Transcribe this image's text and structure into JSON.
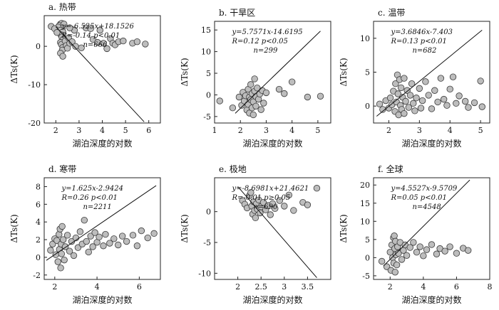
{
  "colors": {
    "marker_fill": "#bdbdbd",
    "marker_stroke": "#3a3a3a",
    "dense_fill": "#4a4a4a",
    "line": "#111111"
  },
  "chart_data": [
    {
      "type": "scatter",
      "title": "a. 热带",
      "xlabel": "湖泊深度的对数",
      "ylabel": "ΔTs(K)",
      "xlim": [
        1.5,
        6.5
      ],
      "ylim": [
        -20,
        8
      ],
      "xticks": [
        2,
        3,
        4,
        5,
        6
      ],
      "yticks": [
        -20,
        -10,
        0
      ],
      "annotation": [
        "y=-6.525x+18.1526",
        "R=-0.14 p<0.01",
        "n=666"
      ],
      "fit": {
        "slope": -6.525,
        "intercept": 18.1526,
        "x_range": [
          2.0,
          5.8
        ]
      },
      "points": [
        [
          2.2,
          5.8
        ],
        [
          2.25,
          6
        ],
        [
          2.3,
          5.5
        ],
        [
          2.15,
          5.4
        ],
        [
          2.35,
          5.8
        ],
        [
          2.28,
          4.8
        ],
        [
          2.1,
          5
        ],
        [
          2.2,
          4.2
        ],
        [
          2.3,
          3.8
        ],
        [
          2.22,
          3
        ],
        [
          2.26,
          2.4
        ],
        [
          2.32,
          1.8
        ],
        [
          2.2,
          1
        ],
        [
          2.24,
          0.5
        ],
        [
          2.3,
          -0.3
        ],
        [
          2.28,
          -1
        ],
        [
          2.2,
          -1.8
        ],
        [
          2.3,
          -2.6
        ],
        [
          2.4,
          1.4
        ],
        [
          2.45,
          0.2
        ],
        [
          2.5,
          -0.5
        ],
        [
          2.55,
          2.2
        ],
        [
          2.6,
          0.8
        ],
        [
          2.7,
          1.2
        ],
        [
          2.8,
          4.2
        ],
        [
          2.85,
          0
        ],
        [
          1.8,
          5.2
        ],
        [
          1.95,
          4.6
        ],
        [
          2.05,
          3.6
        ],
        [
          2.6,
          4.8
        ],
        [
          3.1,
          -0.4
        ],
        [
          3.3,
          4.8
        ],
        [
          3.5,
          4.6
        ],
        [
          3.6,
          1.8
        ],
        [
          3.8,
          1
        ],
        [
          3.9,
          4.2
        ],
        [
          4.05,
          0.8
        ],
        [
          4.2,
          -0.6
        ],
        [
          4.35,
          2
        ],
        [
          4.45,
          0.8
        ],
        [
          4.55,
          0.4
        ],
        [
          4.7,
          1.2
        ],
        [
          4.9,
          1.4
        ],
        [
          5.3,
          0.8
        ],
        [
          5.5,
          1.2
        ],
        [
          5.85,
          0.6
        ]
      ]
    },
    {
      "type": "scatter",
      "title": "b. 干旱区",
      "xlabel": "湖泊深度的对数",
      "ylabel": "ΔTs(K)",
      "xlim": [
        1.0,
        5.5
      ],
      "ylim": [
        -6.5,
        17
      ],
      "xticks": [
        1,
        2,
        3,
        4,
        5
      ],
      "yticks": [
        -5,
        0,
        5,
        10,
        15
      ],
      "annotation": [
        "y=5.7571x-14.6195",
        "R=0.12 p<0.05",
        "n=299"
      ],
      "fit": {
        "slope": 5.7571,
        "intercept": -14.6195,
        "x_range": [
          1.8,
          5.1
        ]
      },
      "points": [
        [
          1.2,
          -1.4
        ],
        [
          1.7,
          -3
        ],
        [
          1.95,
          -0.5
        ],
        [
          2.05,
          -2.4
        ],
        [
          2.1,
          0.6
        ],
        [
          2.15,
          -1.4
        ],
        [
          2.2,
          -0.2
        ],
        [
          2.25,
          -3.5
        ],
        [
          2.3,
          1.3
        ],
        [
          2.3,
          -2.2
        ],
        [
          2.35,
          -0.5
        ],
        [
          2.35,
          -4.2
        ],
        [
          2.4,
          -1.1
        ],
        [
          2.4,
          2.4
        ],
        [
          2.45,
          0.3
        ],
        [
          2.45,
          -3
        ],
        [
          2.5,
          -1.6
        ],
        [
          2.5,
          -4.6
        ],
        [
          2.55,
          0.9
        ],
        [
          2.55,
          3.7
        ],
        [
          2.6,
          -0.4
        ],
        [
          2.6,
          -2.6
        ],
        [
          2.65,
          1.6
        ],
        [
          2.7,
          -1
        ],
        [
          2.75,
          0.2
        ],
        [
          2.8,
          -3.4
        ],
        [
          2.85,
          1
        ],
        [
          2.9,
          -1.9
        ],
        [
          3.0,
          0.5
        ],
        [
          3.5,
          1.3
        ],
        [
          3.7,
          0.3
        ],
        [
          4.0,
          3
        ],
        [
          4.6,
          -0.5
        ],
        [
          5.1,
          -0.3
        ]
      ]
    },
    {
      "type": "scatter",
      "title": "c. 温带",
      "xlabel": "湖泊深度的对数",
      "ylabel": "ΔTs(K)",
      "xlim": [
        1.5,
        5.3
      ],
      "ylim": [
        -2.5,
        12.5
      ],
      "xticks": [
        2,
        3,
        4,
        5
      ],
      "yticks": [
        0,
        5,
        10
      ],
      "annotation": [
        "y=3.6846x-7.403",
        "R=0.13 p<0.01",
        "n=682"
      ],
      "fit": {
        "slope": 3.6846,
        "intercept": -7.403,
        "x_range": [
          1.6,
          5.05
        ]
      },
      "points": [
        [
          1.7,
          0.3
        ],
        [
          1.8,
          -0.5
        ],
        [
          1.9,
          0.8
        ],
        [
          2.0,
          -0.3
        ],
        [
          2.05,
          1.2
        ],
        [
          2.1,
          0.2
        ],
        [
          2.15,
          2.2
        ],
        [
          2.2,
          -0.8
        ],
        [
          2.22,
          3.3
        ],
        [
          2.25,
          0.6
        ],
        [
          2.28,
          4.6
        ],
        [
          2.3,
          1.8
        ],
        [
          2.32,
          -1.3
        ],
        [
          2.35,
          3.9
        ],
        [
          2.38,
          0.1
        ],
        [
          2.4,
          2.7
        ],
        [
          2.42,
          -0.5
        ],
        [
          2.45,
          1.3
        ],
        [
          2.5,
          4.1
        ],
        [
          2.5,
          -1.1
        ],
        [
          2.55,
          0.7
        ],
        [
          2.6,
          2.3
        ],
        [
          2.65,
          -0.2
        ],
        [
          2.7,
          1.6
        ],
        [
          2.75,
          3.3
        ],
        [
          2.8,
          0.4
        ],
        [
          2.85,
          -0.7
        ],
        [
          2.9,
          1.2
        ],
        [
          3.0,
          2.6
        ],
        [
          3.05,
          -0.3
        ],
        [
          3.1,
          0.8
        ],
        [
          3.2,
          3.6
        ],
        [
          3.3,
          1.6
        ],
        [
          3.4,
          -0.4
        ],
        [
          3.5,
          2.3
        ],
        [
          3.6,
          0.6
        ],
        [
          3.7,
          4.1
        ],
        [
          3.8,
          1
        ],
        [
          3.9,
          0.1
        ],
        [
          4.0,
          2.5
        ],
        [
          4.1,
          4.3
        ],
        [
          4.2,
          0.4
        ],
        [
          4.3,
          1.5
        ],
        [
          4.5,
          0.7
        ],
        [
          4.6,
          -0.2
        ],
        [
          4.8,
          0.5
        ],
        [
          5.0,
          3.7
        ],
        [
          5.05,
          -0.1
        ]
      ]
    },
    {
      "type": "scatter",
      "title": "d. 寒带",
      "xlabel": "湖泊深度的对数",
      "ylabel": "ΔTs(K)",
      "xlim": [
        1.5,
        7.0
      ],
      "ylim": [
        -2.5,
        9
      ],
      "xticks": [
        2,
        4,
        6
      ],
      "yticks": [
        -2,
        0,
        2,
        4,
        6,
        8
      ],
      "annotation": [
        "y=1.625x-2.9424",
        "R=0.26 p<0.01",
        "n=2211"
      ],
      "fit": {
        "slope": 1.625,
        "intercept": -2.9424,
        "x_range": [
          1.6,
          6.8
        ]
      },
      "points": [
        [
          1.8,
          0.8
        ],
        [
          1.9,
          1.5
        ],
        [
          2.0,
          2.1
        ],
        [
          2.05,
          0.3
        ],
        [
          2.1,
          1.9
        ],
        [
          2.15,
          -0.5
        ],
        [
          2.2,
          2.6
        ],
        [
          2.22,
          0.9
        ],
        [
          2.25,
          3.2
        ],
        [
          2.28,
          -1.2
        ],
        [
          2.3,
          1.5
        ],
        [
          2.32,
          0.4
        ],
        [
          2.35,
          3.5
        ],
        [
          2.4,
          2
        ],
        [
          2.45,
          -0.3
        ],
        [
          2.5,
          1.2
        ],
        [
          2.6,
          2.5
        ],
        [
          2.7,
          0.7
        ],
        [
          2.8,
          1.8
        ],
        [
          2.9,
          0.2
        ],
        [
          3.0,
          2.2
        ],
        [
          3.1,
          1.1
        ],
        [
          3.2,
          2.9
        ],
        [
          3.3,
          1.5
        ],
        [
          3.4,
          4.2
        ],
        [
          3.5,
          1.8
        ],
        [
          3.6,
          0.6
        ],
        [
          3.7,
          2.4
        ],
        [
          3.8,
          1.2
        ],
        [
          3.9,
          2.8
        ],
        [
          4.0,
          1.7
        ],
        [
          4.1,
          2.3
        ],
        [
          4.3,
          1.3
        ],
        [
          4.4,
          2.6
        ],
        [
          4.6,
          1.6
        ],
        [
          4.8,
          2.1
        ],
        [
          5.0,
          1.4
        ],
        [
          5.2,
          2.4
        ],
        [
          5.4,
          1.8
        ],
        [
          5.7,
          2.5
        ],
        [
          5.9,
          1.3
        ],
        [
          6.1,
          3
        ],
        [
          6.4,
          2.2
        ],
        [
          6.7,
          2.7
        ]
      ]
    },
    {
      "type": "scatter",
      "title": "e. 极地",
      "xlabel": "湖泊深度的对数",
      "ylabel": "ΔTs(K)",
      "xlim": [
        1.5,
        4.0
      ],
      "ylim": [
        -11,
        5.5
      ],
      "xticks": [
        2,
        2.5,
        3,
        3.5
      ],
      "xtick_labels": [
        "2",
        "2.5",
        "3",
        "3.5"
      ],
      "yticks": [
        -10,
        -5,
        0
      ],
      "annotation": [
        "y=-8.6981x+21.4621",
        "R=-0.01 p≥0.05",
        "n=690"
      ],
      "fit": {
        "slope": -8.6981,
        "intercept": 21.4621,
        "x_range": [
          2.0,
          3.7
        ]
      },
      "points": [
        [
          2.1,
          1.8
        ],
        [
          2.15,
          1.2
        ],
        [
          2.2,
          0.6
        ],
        [
          2.25,
          2.6
        ],
        [
          2.28,
          3.1
        ],
        [
          2.3,
          0.9
        ],
        [
          2.32,
          -0.4
        ],
        [
          2.34,
          1.6
        ],
        [
          2.36,
          0.2
        ],
        [
          2.38,
          -1
        ],
        [
          2.4,
          1.3
        ],
        [
          2.42,
          0.4
        ],
        [
          2.45,
          1.9
        ],
        [
          2.48,
          -0.2
        ],
        [
          2.5,
          0.8
        ],
        [
          2.55,
          1.5
        ],
        [
          2.6,
          0.3
        ],
        [
          2.65,
          1
        ],
        [
          2.7,
          -0.5
        ],
        [
          2.75,
          1.3
        ],
        [
          2.8,
          0.5
        ],
        [
          2.9,
          1.8
        ],
        [
          3.0,
          0.9
        ],
        [
          3.1,
          2.7
        ],
        [
          3.2,
          0.2
        ],
        [
          3.4,
          1.5
        ],
        [
          3.5,
          1.1
        ],
        [
          3.7,
          3.8
        ]
      ]
    },
    {
      "type": "scatter",
      "title": "f. 全球",
      "xlabel": "湖泊深度的对数",
      "ylabel": "ΔTs(K)",
      "xlim": [
        1.0,
        8.0
      ],
      "ylim": [
        -6,
        22
      ],
      "xticks": [
        2,
        4,
        6,
        8
      ],
      "yticks": [
        -5,
        0,
        5,
        10,
        15,
        20
      ],
      "annotation": [
        "y=4.5527x-9.5709",
        "R=0.05 p<0.01",
        "n=4548"
      ],
      "fit": {
        "slope": 4.5527,
        "intercept": -9.5709,
        "x_range": [
          1.6,
          6.8
        ]
      },
      "points": [
        [
          1.5,
          -1
        ],
        [
          1.8,
          -2.5
        ],
        [
          2.0,
          1.5
        ],
        [
          2.05,
          -3.5
        ],
        [
          2.1,
          3.5
        ],
        [
          2.15,
          0
        ],
        [
          2.2,
          5.5
        ],
        [
          2.22,
          -1.5
        ],
        [
          2.25,
          6
        ],
        [
          2.28,
          2.5
        ],
        [
          2.3,
          -4
        ],
        [
          2.32,
          4.5
        ],
        [
          2.35,
          0.8
        ],
        [
          2.4,
          -2
        ],
        [
          2.45,
          3
        ],
        [
          2.5,
          1.2
        ],
        [
          2.6,
          4.2
        ],
        [
          2.7,
          -0.5
        ],
        [
          2.8,
          2
        ],
        [
          2.9,
          3.5
        ],
        [
          3.0,
          0.6
        ],
        [
          3.2,
          2.8
        ],
        [
          3.4,
          4.2
        ],
        [
          3.6,
          1.5
        ],
        [
          3.8,
          3
        ],
        [
          4.0,
          0.5
        ],
        [
          4.2,
          2.2
        ],
        [
          4.5,
          3.6
        ],
        [
          4.8,
          1
        ],
        [
          5.0,
          2.5
        ],
        [
          5.3,
          1.8
        ],
        [
          5.6,
          3
        ],
        [
          6.0,
          1.2
        ],
        [
          6.4,
          2.6
        ],
        [
          6.7,
          2
        ]
      ]
    }
  ]
}
